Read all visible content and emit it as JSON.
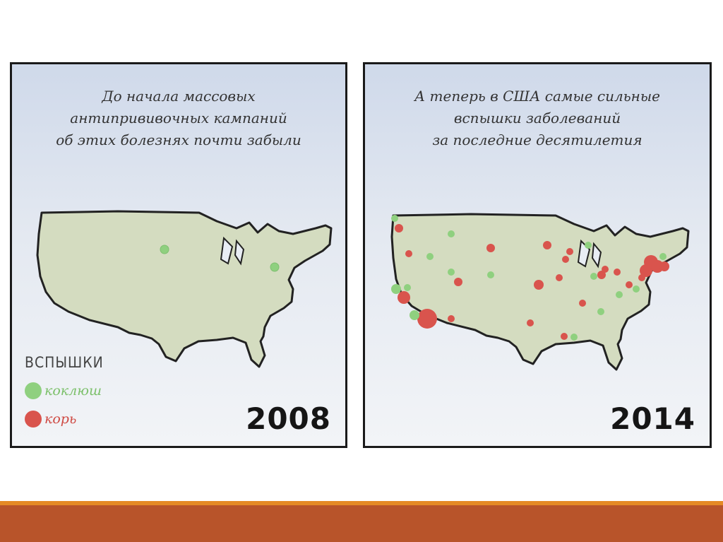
{
  "panels": [
    {
      "caption": "До начала массовых\nантиприви­вочных кампаний\nоб этих болезнях почти забыли",
      "year": "2008"
    },
    {
      "caption": "А теперь в США самые сильные\nвспышки заболеваний\nза последние десятилетия",
      "year": "2014"
    }
  ],
  "legend": {
    "title": "ВСПЫШКИ",
    "items": [
      {
        "label": "коклюш",
        "color": "#8fd07f"
      },
      {
        "label": "корь",
        "color": "#d9544d"
      }
    ]
  },
  "colors": {
    "land": "#d4dcc0",
    "outline": "#222222",
    "green": "#8fd07f",
    "red": "#d9544d",
    "footer_accent": "#e58a25",
    "footer": "#b8542a"
  }
}
